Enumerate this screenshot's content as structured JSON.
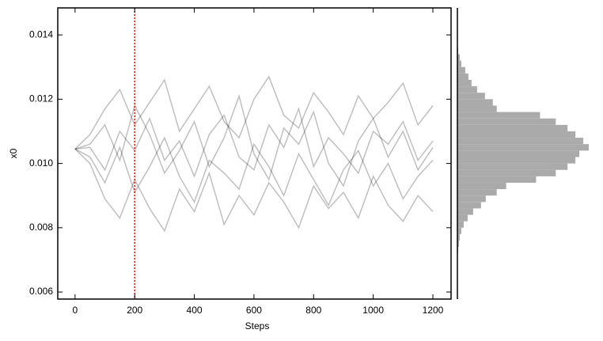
{
  "chart_data": [
    {
      "type": "line",
      "xlabel": "Steps",
      "ylabel": "x0",
      "x": [
        0,
        50,
        100,
        150,
        200,
        250,
        300,
        350,
        400,
        450,
        500,
        550,
        600,
        650,
        700,
        750,
        800,
        850,
        900,
        950,
        1000,
        1050,
        1100,
        1150,
        1200
      ],
      "series": [
        {
          "color": "#000000",
          "values": [
            0.01045,
            0.0106,
            0.0112,
            0.0101,
            0.0118,
            0.0109,
            0.0097,
            0.0104,
            0.0113,
            0.0099,
            0.0108,
            0.0121,
            0.0103,
            0.0095,
            0.0111,
            0.0106,
            0.0116,
            0.01,
            0.0093,
            0.0107,
            0.0114,
            0.0102,
            0.011,
            0.0098,
            0.0105
          ]
        },
        {
          "color": "#000000",
          "values": [
            0.01045,
            0.0102,
            0.0094,
            0.0105,
            0.0091,
            0.0099,
            0.0108,
            0.0096,
            0.0088,
            0.0101,
            0.0097,
            0.0092,
            0.0106,
            0.0099,
            0.009,
            0.0103,
            0.0095,
            0.0087,
            0.0098,
            0.0104,
            0.0093,
            0.01,
            0.0089,
            0.0096,
            0.0101
          ]
        },
        {
          "color": "#000000",
          "values": [
            0.01045,
            0.0109,
            0.0117,
            0.0123,
            0.0112,
            0.0119,
            0.0126,
            0.011,
            0.0117,
            0.0124,
            0.0113,
            0.0108,
            0.012,
            0.0127,
            0.0115,
            0.0111,
            0.0122,
            0.0116,
            0.0109,
            0.0121,
            0.0114,
            0.0119,
            0.0125,
            0.0112,
            0.0118
          ]
        },
        {
          "color": "#000000",
          "values": [
            0.01045,
            0.01,
            0.0089,
            0.0083,
            0.0095,
            0.0086,
            0.0079,
            0.0092,
            0.0085,
            0.0097,
            0.0081,
            0.009,
            0.0084,
            0.0094,
            0.0088,
            0.008,
            0.0093,
            0.0086,
            0.0091,
            0.0083,
            0.0096,
            0.0087,
            0.0082,
            0.009,
            0.0085
          ]
        },
        {
          "color": "#000000",
          "values": [
            0.01045,
            0.0105,
            0.0098,
            0.011,
            0.0104,
            0.0114,
            0.0101,
            0.0107,
            0.0096,
            0.0109,
            0.0115,
            0.0102,
            0.0098,
            0.0112,
            0.0105,
            0.0117,
            0.0099,
            0.0108,
            0.0103,
            0.0097,
            0.011,
            0.0106,
            0.0113,
            0.0101,
            0.0107
          ]
        }
      ],
      "vline": {
        "x": 200,
        "color": "#ff0000"
      },
      "xlim": [
        -58,
        1261
      ],
      "xticks": [
        0,
        200,
        400,
        600,
        800,
        1000,
        1200
      ],
      "ylim": [
        0.00578,
        0.01484
      ],
      "yticks": [
        0.006,
        0.008,
        {
          "value": 0.01,
          "label": "0.010"
        },
        0.012,
        0.014
      ]
    },
    {
      "type": "histogram",
      "orientation": "horizontal",
      "color": "#aaaaaa",
      "bins": [
        0.0072,
        0.0074,
        0.0076,
        0.0078,
        0.008,
        0.0082,
        0.0084,
        0.0086,
        0.0088,
        0.009,
        0.0092,
        0.0094,
        0.0096,
        0.0098,
        0.01,
        0.0102,
        0.0104,
        0.0106,
        0.0108,
        0.011,
        0.0112,
        0.0114,
        0.0116,
        0.0118,
        0.012,
        0.0122,
        0.0124,
        0.0126,
        0.0128,
        0.013,
        0.0132,
        0.0134,
        0.0136
      ],
      "values": [
        1,
        2,
        3,
        5,
        8,
        13,
        20,
        30,
        36,
        50,
        62,
        100,
        125,
        140,
        150,
        155,
        167,
        160,
        150,
        140,
        125,
        105,
        50,
        45,
        35,
        25,
        18,
        14,
        10,
        5,
        3,
        1
      ],
      "xlim": [
        0,
        175
      ],
      "ylim": [
        0.00578,
        0.01484
      ]
    }
  ]
}
